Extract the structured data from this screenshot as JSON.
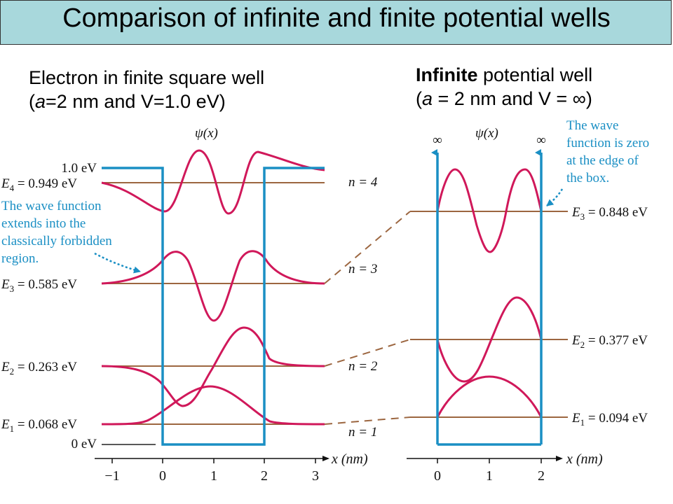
{
  "title": "Comparison of infinite and finite potential wells",
  "left_heading": {
    "line1": "Electron in finite square well",
    "line2_pre": "(",
    "line2_a": "a",
    "line2_post": "=2 nm and V=1.0 eV)"
  },
  "right_heading": {
    "bold": "Infinite",
    "rest": " potential well",
    "line2_pre": "(",
    "line2_a": "a",
    "line2_post": " = 2 nm  and  V = ∞)"
  },
  "finite_well": {
    "psi_label": "ψ(x)",
    "top_label": "1.0 eV",
    "zero_label": "0 eV",
    "levels": [
      {
        "sym": "E",
        "sub": "1",
        "text": " = 0.068 eV",
        "n": "n = 1",
        "energy": 0.068
      },
      {
        "sym": "E",
        "sub": "2",
        "text": " = 0.263 eV",
        "n": "n = 2",
        "energy": 0.263
      },
      {
        "sym": "E",
        "sub": "3",
        "text": " = 0.585 eV",
        "n": "n = 3",
        "energy": 0.585
      },
      {
        "sym": "E",
        "sub": "4",
        "text": " = 0.949 eV",
        "n": "n = 4",
        "energy": 0.949
      }
    ],
    "annotation": [
      "The wave function",
      "extends into the",
      "classically forbidden",
      "region."
    ],
    "x_axis_label": "x (nm)",
    "x_ticks": [
      "−1",
      "0",
      "1",
      "2",
      "3"
    ]
  },
  "infinite_well": {
    "psi_label": "ψ(x)",
    "inf_left": "∞",
    "inf_right": "∞",
    "levels": [
      {
        "sym": "E",
        "sub": "1",
        "text": " = 0.094 eV",
        "energy": 0.094
      },
      {
        "sym": "E",
        "sub": "2",
        "text": " = 0.377 eV",
        "energy": 0.377
      },
      {
        "sym": "E",
        "sub": "3",
        "text": " = 0.848 eV",
        "energy": 0.848
      }
    ],
    "annotation": [
      "The wave",
      "function is zero",
      "at the edge of",
      "the box."
    ],
    "x_axis_label": "x (nm)",
    "x_ticks": [
      "0",
      "1",
      "2"
    ]
  },
  "colors": {
    "well": "#1a8fc4",
    "wave": "#d0185a",
    "level": "#9c6640",
    "annotation": "#1a8fc4",
    "title_bg": "#a8d8dc"
  }
}
